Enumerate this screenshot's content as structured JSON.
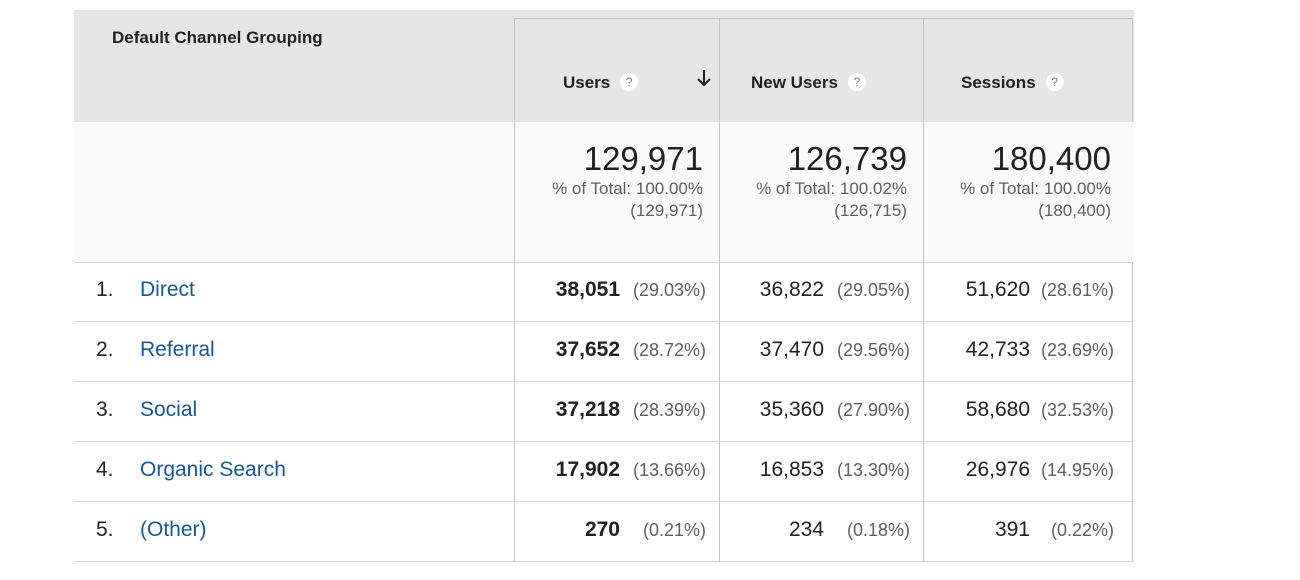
{
  "header": {
    "dimension": "Default Channel Grouping",
    "columns": [
      {
        "label": "Users",
        "help": "?",
        "sorted": "descending",
        "icon": "arrow-down-icon"
      },
      {
        "label": "New Users",
        "help": "?"
      },
      {
        "label": "Sessions",
        "help": "?"
      }
    ]
  },
  "totals": {
    "users": {
      "value": "129,971",
      "pct": "% of Total: 100.00%",
      "abs": "(129,971)"
    },
    "new_users": {
      "value": "126,739",
      "pct": "% of Total: 100.02%",
      "abs": "(126,715)"
    },
    "sessions": {
      "value": "180,400",
      "pct": "% of Total: 100.00%",
      "abs": "(180,400)"
    }
  },
  "rows": [
    {
      "index": "1.",
      "name": "Direct",
      "users": "38,051",
      "users_pct": "(29.03%)",
      "new_users": "36,822",
      "new_users_pct": "(29.05%)",
      "sessions": "51,620",
      "sessions_pct": "(28.61%)"
    },
    {
      "index": "2.",
      "name": "Referral",
      "users": "37,652",
      "users_pct": "(28.72%)",
      "new_users": "37,470",
      "new_users_pct": "(29.56%)",
      "sessions": "42,733",
      "sessions_pct": "(23.69%)"
    },
    {
      "index": "3.",
      "name": "Social",
      "users": "37,218",
      "users_pct": "(28.39%)",
      "new_users": "35,360",
      "new_users_pct": "(27.90%)",
      "sessions": "58,680",
      "sessions_pct": "(32.53%)"
    },
    {
      "index": "4.",
      "name": "Organic Search",
      "users": "17,902",
      "users_pct": "(13.66%)",
      "new_users": "16,853",
      "new_users_pct": "(13.30%)",
      "sessions": "26,976",
      "sessions_pct": "(14.95%)"
    },
    {
      "index": "5.",
      "name": "(Other)",
      "users": "270",
      "users_pct": "(0.21%)",
      "new_users": "234",
      "new_users_pct": "(0.18%)",
      "sessions": "391",
      "sessions_pct": "(0.22%)"
    }
  ],
  "colors": {
    "link": "#1a5598",
    "header_bg": "#e6e6e6",
    "border": "#c4c4c4"
  }
}
